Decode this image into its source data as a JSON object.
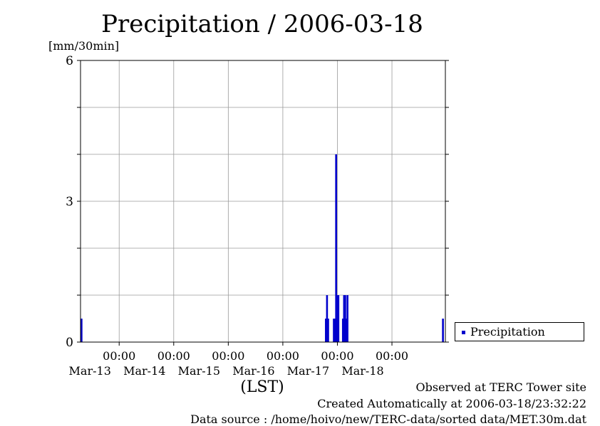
{
  "chart_data": {
    "type": "bar",
    "title": "Precipitation / 2006-03-18",
    "ylabel": "[mm/30min]",
    "xlabel": "(LST)",
    "ylim": [
      0,
      6
    ],
    "yticks": [
      "0",
      "3",
      "6"
    ],
    "xlim": [
      "2006-03-12 07:00",
      "2006-03-18 23:30"
    ],
    "xticks": [
      {
        "time": "2006-03-13 00:00",
        "label_top": "00:00",
        "label_bottom": "Mar-13"
      },
      {
        "time": "2006-03-14 00:00",
        "label_top": "00:00",
        "label_bottom": "Mar-14"
      },
      {
        "time": "2006-03-15 00:00",
        "label_top": "00:00",
        "label_bottom": "Mar-15"
      },
      {
        "time": "2006-03-16 00:00",
        "label_top": "00:00",
        "label_bottom": "Mar-16"
      },
      {
        "time": "2006-03-17 00:00",
        "label_top": "00:00",
        "label_bottom": "Mar-17"
      },
      {
        "time": "2006-03-18 00:00",
        "label_top": "00:00",
        "label_bottom": "Mar-18"
      }
    ],
    "grid": true,
    "legend_position": "bottom-right, outside",
    "series": [
      {
        "name": "Precipitation",
        "color": "#0000cc",
        "points": [
          {
            "time": "2006-03-12 07:30",
            "value": 0.5
          },
          {
            "time": "2006-03-16 19:00",
            "value": 0.5
          },
          {
            "time": "2006-03-16 19:30",
            "value": 1.0
          },
          {
            "time": "2006-03-16 20:00",
            "value": 0.5
          },
          {
            "time": "2006-03-16 22:30",
            "value": 0.5
          },
          {
            "time": "2006-03-16 23:00",
            "value": 0.5
          },
          {
            "time": "2006-03-16 23:30",
            "value": 4.0
          },
          {
            "time": "2006-03-17 00:00",
            "value": 1.0
          },
          {
            "time": "2006-03-17 00:30",
            "value": 1.0
          },
          {
            "time": "2006-03-17 02:30",
            "value": 0.5
          },
          {
            "time": "2006-03-17 03:00",
            "value": 1.0
          },
          {
            "time": "2006-03-17 03:30",
            "value": 1.0
          },
          {
            "time": "2006-03-17 04:00",
            "value": 0.5
          },
          {
            "time": "2006-03-17 04:30",
            "value": 1.0
          },
          {
            "time": "2006-03-18 22:30",
            "value": 0.5
          }
        ]
      }
    ]
  },
  "legend": {
    "label": "Precipitation",
    "color": "#0000cc"
  },
  "footer": {
    "observed": "Observed at TERC Tower site",
    "created": "Created Automatically at 2006-03-18/23:32:22",
    "source": "Data source : /home/hoivo/new/TERC-data/sorted  data/MET.30m.dat"
  }
}
